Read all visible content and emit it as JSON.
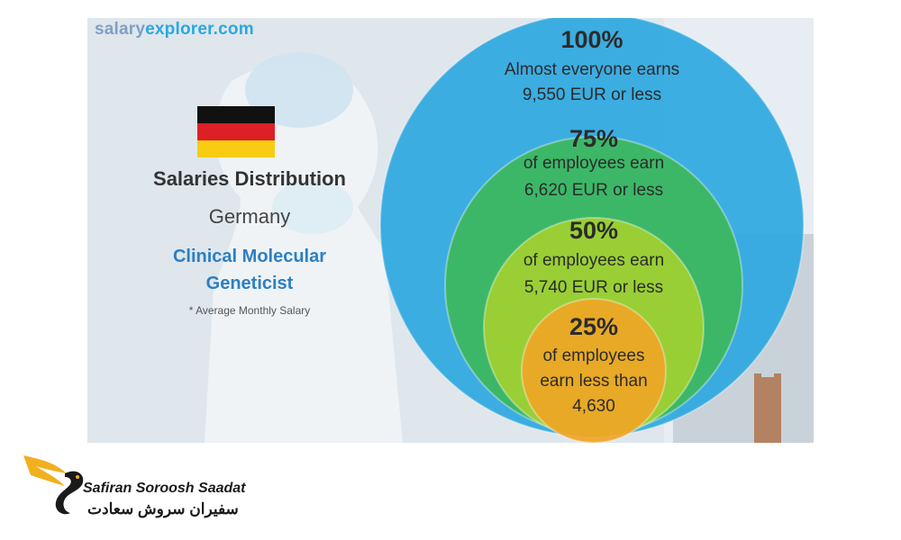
{
  "site": {
    "name_part1": "salary",
    "name_part2": "explorer.com"
  },
  "header": {
    "title": "Salaries Distribution",
    "country": "Germany",
    "job_line1": "Clinical Molecular",
    "job_line2": "Geneticist",
    "note": "* Average Monthly Salary"
  },
  "chart_data": {
    "type": "nested-bubble",
    "unit": "EUR",
    "series": [
      {
        "percentile": "100%",
        "line1": "Almost everyone earns",
        "line2": "9,550 EUR or less",
        "line3": "",
        "value": 9550,
        "color": "#2aa6e0"
      },
      {
        "percentile": "75%",
        "line1": "of employees earn",
        "line2": "6,620 EUR or less",
        "line3": "",
        "value": 6620,
        "color": "#3cb85a"
      },
      {
        "percentile": "50%",
        "line1": "of employees earn",
        "line2": "5,740 EUR or less",
        "line3": "",
        "value": 5740,
        "color": "#a3d230"
      },
      {
        "percentile": "25%",
        "line1": "of employees",
        "line2": "earn less than",
        "line3": "4,630",
        "value": 4630,
        "color": "#f1a425"
      }
    ]
  },
  "brand": {
    "name_en": "Safiran Soroosh Saadat",
    "name_fa": "سفیران سروش سعادت"
  }
}
